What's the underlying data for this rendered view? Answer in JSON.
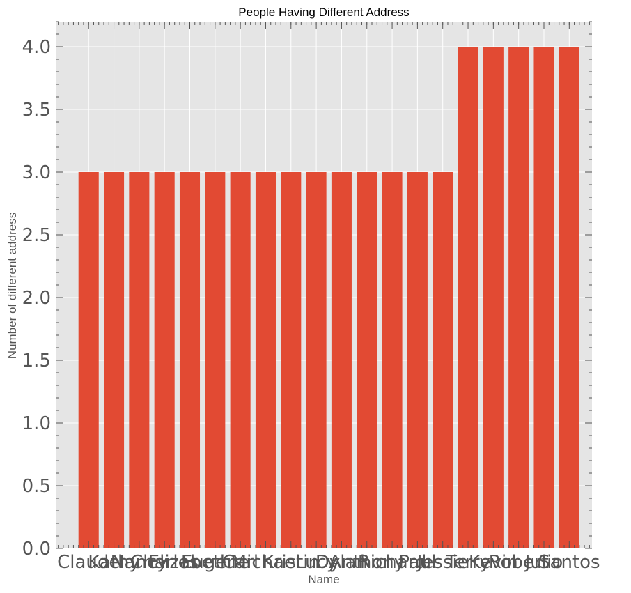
{
  "chart_data": {
    "type": "bar",
    "title": "People Having Different Address",
    "xlabel": "Name",
    "ylabel": "Number of different address",
    "categories": [
      "Claude",
      "Kathy",
      "Nancy",
      "Charles",
      "Elizabeth",
      "Eugene",
      "Carl",
      "Michael",
      "Kristin",
      "Lucy",
      "Dylan",
      "Anthony",
      "Richard",
      "Paul",
      "Jessie",
      "Terry",
      "Kevin",
      "Robert",
      "Julio",
      "Santos"
    ],
    "values": [
      3,
      3,
      3,
      3,
      3,
      3,
      3,
      3,
      3,
      3,
      3,
      3,
      3,
      3,
      3,
      4,
      4,
      4,
      4,
      4
    ],
    "ylim": [
      0,
      4.2
    ],
    "yticks": [
      "0.0",
      "0.5",
      "1.0",
      "1.5",
      "2.0",
      "2.5",
      "3.0",
      "3.5",
      "4.0"
    ],
    "grid": true,
    "bar_color": "#e24a33",
    "background_color": "#e5e5e5"
  }
}
